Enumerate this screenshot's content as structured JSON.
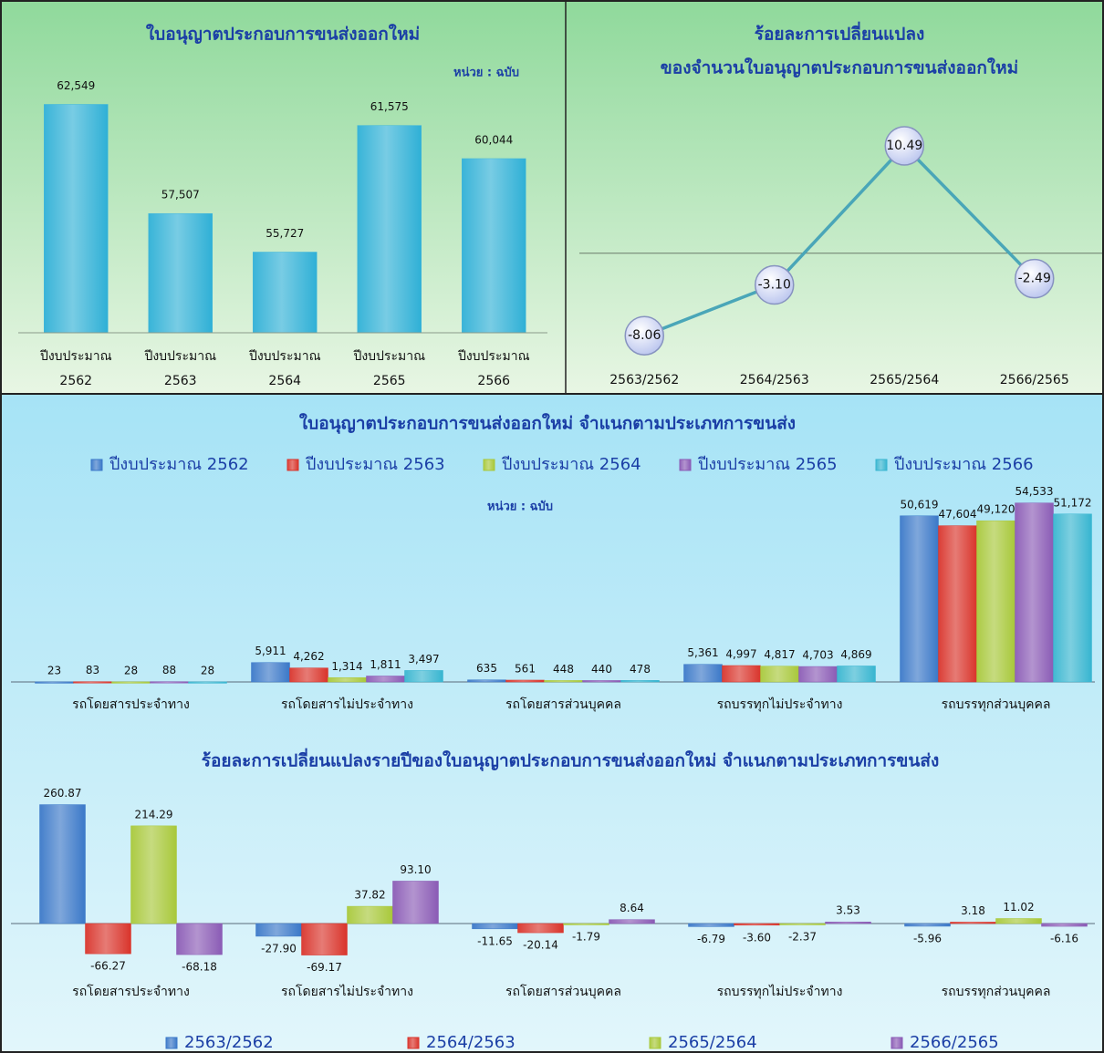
{
  "chart_data": [
    {
      "type": "bar",
      "title": "ใบอนุญาตประกอบการขนส่งออกใหม่",
      "note": "หน่วย : ฉบับ",
      "categories": [
        [
          "ปีงบประมาณ",
          "2562"
        ],
        [
          "ปีงบประมาณ",
          "2563"
        ],
        [
          "ปีงบประมาณ",
          "2564"
        ],
        [
          "ปีงบประมาณ",
          "2565"
        ],
        [
          "ปีงบประมาณ",
          "2566"
        ]
      ],
      "values": [
        62549,
        57507,
        55727,
        61575,
        60044
      ],
      "value_labels": [
        "62,549",
        "57,507",
        "55,727",
        "61,575",
        "60,044"
      ],
      "color": "#2fb0d6",
      "ylim": [
        52000,
        64000
      ]
    },
    {
      "type": "line",
      "title": [
        "ร้อยละการเปลี่ยนแปลง",
        "ของจำนวนใบอนุญาตประกอบการขนส่งออกใหม่"
      ],
      "categories": [
        "2563/2562",
        "2564/2563",
        "2565/2564",
        "2566/2565"
      ],
      "values": [
        -8.06,
        -3.1,
        10.49,
        -2.49
      ],
      "value_labels": [
        "-8.06",
        "-3.10",
        "10.49",
        "-2.49"
      ],
      "color": "#4aa6b8",
      "ylim": [
        -10,
        12
      ]
    },
    {
      "type": "grouped_bar",
      "title": "ใบอนุญาตประกอบการขนส่งออกใหม่  จำแนกตามประเภทการขนส่ง",
      "note": "หน่วย : ฉบับ",
      "legend": "top",
      "categories": [
        "รถโดยสารประจำทาง",
        "รถโดยสารไม่ประจำทาง",
        "รถโดยสารส่วนบุคคล",
        "รถบรรทุกไม่ประจำทาง",
        "รถบรรทุกส่วนบุคคล"
      ],
      "series": [
        {
          "name": "ปีงบประมาณ 2562",
          "color": "#3a78c8",
          "values": [
            23,
            5911,
            635,
            5361,
            50619
          ],
          "value_labels": [
            "23",
            "5,911",
            "635",
            "5,361",
            "50,619"
          ]
        },
        {
          "name": "ปีงบประมาณ 2563",
          "color": "#d9342b",
          "values": [
            83,
            4262,
            561,
            4997,
            47604
          ],
          "value_labels": [
            "83",
            "4,262",
            "561",
            "4,997",
            "47,604"
          ]
        },
        {
          "name": "ปีงบประมาณ 2564",
          "color": "#a8c83a",
          "values": [
            28,
            1314,
            448,
            4817,
            49120
          ],
          "value_labels": [
            "28",
            "1,314",
            "448",
            "4,817",
            "49,120"
          ]
        },
        {
          "name": "ปีงบประมาณ 2565",
          "color": "#8a5bb5",
          "values": [
            88,
            1811,
            440,
            4703,
            54533
          ],
          "value_labels": [
            "88",
            "1,811",
            "440",
            "4,703",
            "54,533"
          ]
        },
        {
          "name": "ปีงบประมาณ 2566",
          "color": "#37b5d0",
          "values": [
            28,
            3497,
            478,
            4869,
            51172
          ],
          "value_labels": [
            "28",
            "3,497",
            "478",
            "4,869",
            "51,172"
          ]
        }
      ],
      "ylim": [
        0,
        60000
      ]
    },
    {
      "type": "grouped_bar",
      "title": "ร้อยละการเปลี่ยนแปลงรายปีของใบอนุญาตประกอบการขนส่งออกใหม่  จำแนกตามประเภทการขนส่ง",
      "legend": "bottom",
      "categories": [
        "รถโดยสารประจำทาง",
        "รถโดยสารไม่ประจำทาง",
        "รถโดยสารส่วนบุคคล",
        "รถบรรทุกไม่ประจำทาง",
        "รถบรรทุกส่วนบุคคล"
      ],
      "series": [
        {
          "name": "2563/2562",
          "color": "#3a78c8",
          "values": [
            260.87,
            -27.9,
            -11.65,
            -6.79,
            -5.96
          ],
          "value_labels": [
            "260.87",
            "-27.90",
            "-11.65",
            "-6.79",
            "-5.96"
          ]
        },
        {
          "name": "2564/2563",
          "color": "#d9342b",
          "values": [
            -66.27,
            -69.17,
            -20.14,
            -3.6,
            3.18
          ],
          "value_labels": [
            "-66.27",
            "-69.17",
            "-20.14",
            "-3.60",
            "3.18"
          ]
        },
        {
          "name": "2565/2564",
          "color": "#a8c83a",
          "values": [
            214.29,
            37.82,
            -1.79,
            -2.37,
            11.02
          ],
          "value_labels": [
            "214.29",
            "37.82",
            "-1.79",
            "-2.37",
            "11.02"
          ]
        },
        {
          "name": "2566/2565",
          "color": "#8a5bb5",
          "values": [
            -68.18,
            93.1,
            8.64,
            3.53,
            -6.16
          ],
          "value_labels": [
            "-68.18",
            "93.10",
            "8.64",
            "3.53",
            "-6.16"
          ]
        }
      ],
      "ylim": [
        -100,
        280
      ]
    }
  ]
}
